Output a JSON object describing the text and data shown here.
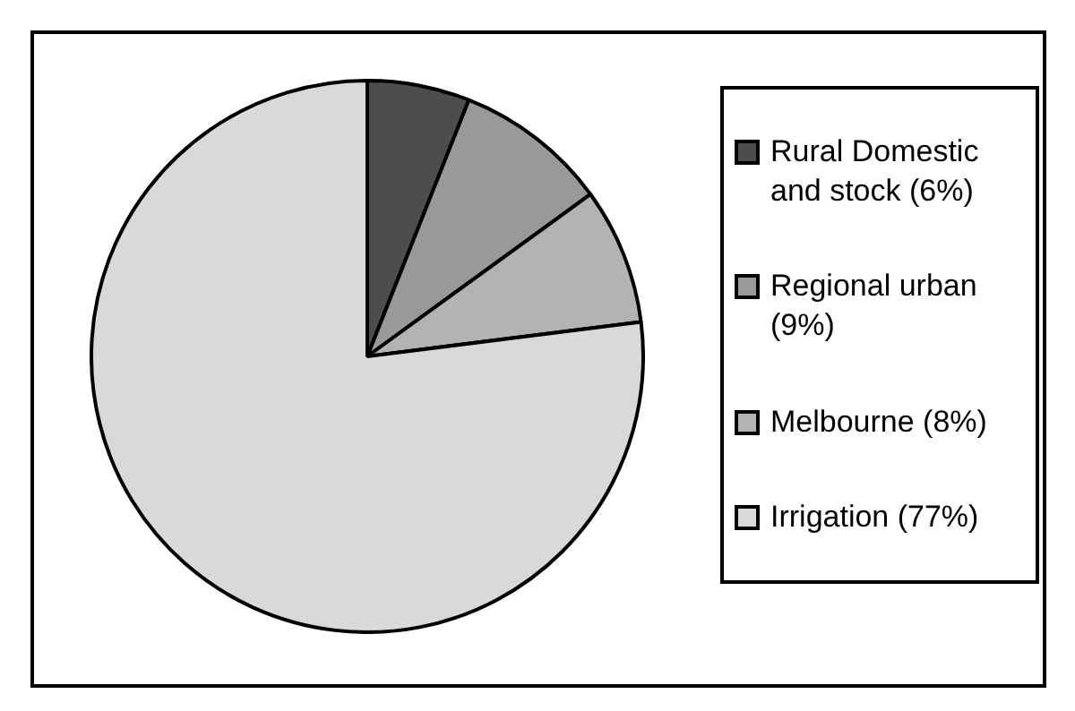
{
  "chart_data": {
    "type": "pie",
    "categories": [
      "Rural Domestic and stock (6%)",
      "Regional urban (9%)",
      "Melbourne (8%)",
      "Irrigation (77%)"
    ],
    "values": [
      6,
      9,
      8,
      77
    ],
    "colors": [
      "#4d4d4d",
      "#999999",
      "#b3b3b3",
      "#d9d9d9"
    ],
    "legend": "right"
  }
}
